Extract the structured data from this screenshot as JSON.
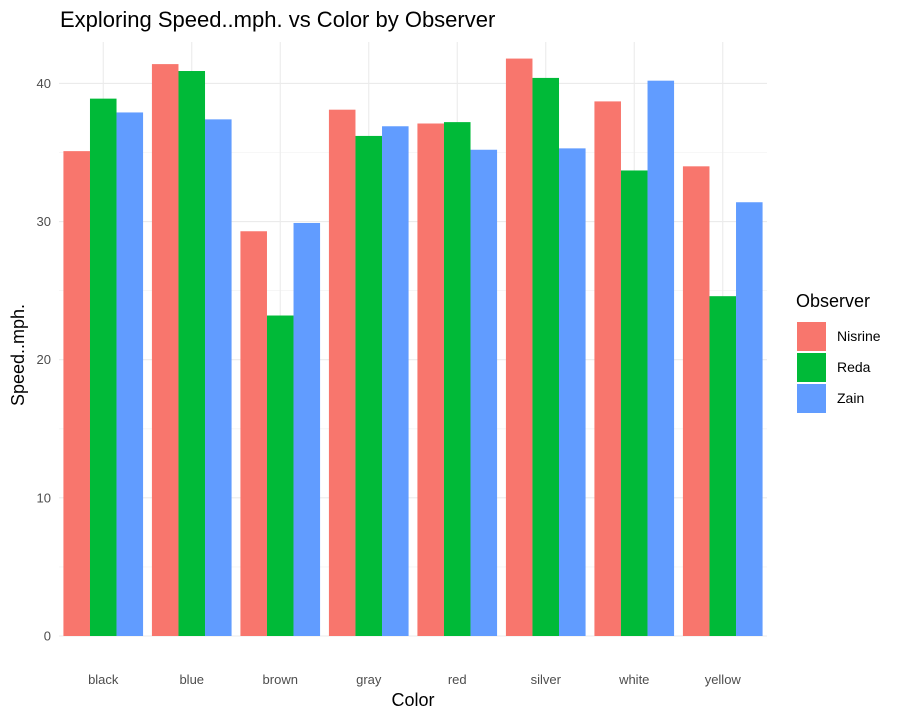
{
  "chart_data": {
    "type": "bar",
    "title": "Exploring Speed..mph. vs Color by Observer",
    "xlabel": "Color",
    "ylabel": "Speed..mph.",
    "categories": [
      "black",
      "blue",
      "brown",
      "gray",
      "red",
      "silver",
      "white",
      "yellow"
    ],
    "series": [
      {
        "name": "Nisrine",
        "color": "#F8766D",
        "values": [
          35.1,
          41.4,
          29.3,
          38.1,
          37.1,
          41.8,
          38.7,
          34.0
        ]
      },
      {
        "name": "Reda",
        "color": "#00BA38",
        "values": [
          38.9,
          40.9,
          23.2,
          36.2,
          37.2,
          40.4,
          33.7,
          24.6
        ]
      },
      {
        "name": "Zain",
        "color": "#619CFF",
        "values": [
          37.9,
          37.4,
          29.9,
          36.9,
          35.2,
          35.3,
          40.2,
          31.4
        ]
      }
    ],
    "ylim": [
      0,
      43
    ],
    "yticks": [
      0,
      10,
      20,
      30,
      40
    ],
    "grid": true,
    "legend": {
      "title": "Observer",
      "position": "right"
    }
  }
}
